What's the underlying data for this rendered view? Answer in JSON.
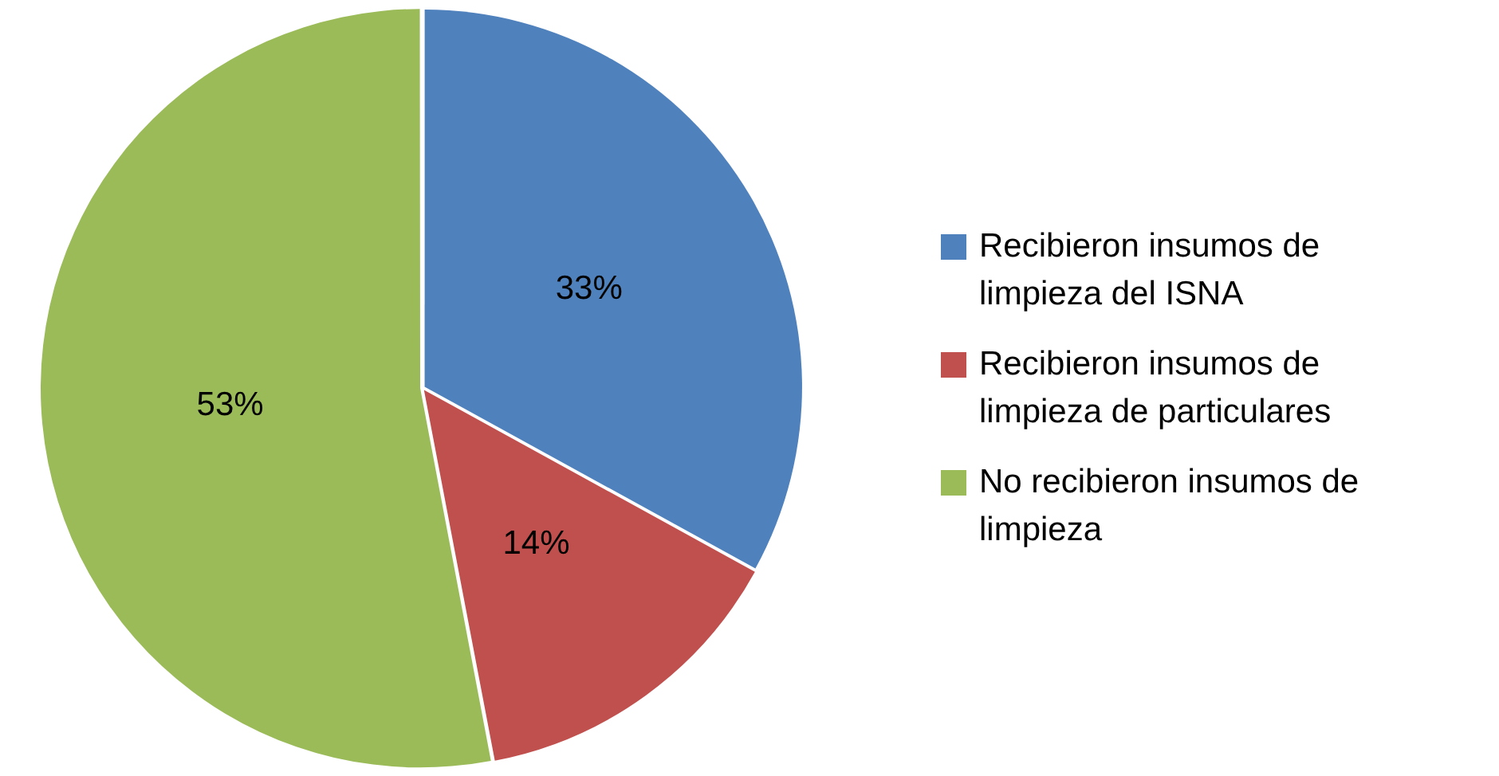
{
  "chart_data": {
    "type": "pie",
    "categories": [
      "Recibieron insumos de limpieza del ISNA",
      "Recibieron insumos de limpieza de particulares",
      "No recibieron insumos de limpieza"
    ],
    "values": [
      33,
      14,
      53
    ],
    "colors": [
      "#4f81bd",
      "#c0504d",
      "#9bbb59"
    ],
    "value_labels": [
      "33%",
      "14%",
      "53%"
    ],
    "legend": "right"
  }
}
